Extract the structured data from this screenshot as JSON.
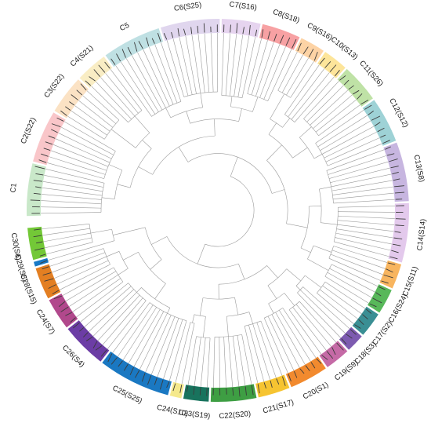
{
  "figure": {
    "type": "circular-phylogenetic-tree",
    "branch_color": "#9a9a9a",
    "background": "#ffffff"
  },
  "clades": [
    {
      "label": "C1",
      "color": "#c9e8c9",
      "leaves": 8
    },
    {
      "label": "C2(S22)",
      "color": "#f9c6c9",
      "leaves": 8
    },
    {
      "label": "C3(S22)",
      "color": "#fbe2c4",
      "leaves": 6
    },
    {
      "label": "C4(S21)",
      "color": "#f9edc4",
      "leaves": 5
    },
    {
      "label": "C5",
      "color": "#bfe0e3",
      "leaves": 9
    },
    {
      "label": "C6(S25)",
      "color": "#e0d6ee",
      "leaves": 9
    },
    {
      "label": "C7(S16)",
      "color": "#e6d4ef",
      "leaves": 6
    },
    {
      "label": "C8(S18)",
      "color": "#f7a1a3",
      "leaves": 6
    },
    {
      "label": "C9(S16)",
      "color": "#fdd3a5",
      "leaves": 4
    },
    {
      "label": "C10(S13)",
      "color": "#fde59a",
      "leaves": 4
    },
    {
      "label": "C11(S26)",
      "color": "#bfe2a6",
      "leaves": 6
    },
    {
      "label": "C12(S12)",
      "color": "#9ed2d6",
      "leaves": 7
    },
    {
      "label": "C13(S8)",
      "color": "#c7b6e0",
      "leaves": 9
    },
    {
      "label": "C14(S14)",
      "color": "#e3c9ec",
      "leaves": 9
    },
    {
      "label": "C15(S11)",
      "color": "#f8b55f",
      "leaves": 4
    },
    {
      "label": "C16(S24)",
      "color": "#58b85a",
      "leaves": 4
    },
    {
      "label": "C17(S2)",
      "color": "#3a8f94",
      "leaves": 4
    },
    {
      "label": "C18(S3)",
      "color": "#7d5bb0",
      "leaves": 3
    },
    {
      "label": "C19(S9)",
      "color": "#c56aa6",
      "leaves": 4
    },
    {
      "label": "C20(S1)",
      "color": "#f28a2e",
      "leaves": 6
    },
    {
      "label": "C21(S17)",
      "color": "#f6c431",
      "leaves": 5
    },
    {
      "label": "C22(S20)",
      "color": "#3e9e43",
      "leaves": 7
    },
    {
      "label": "C23(S19)",
      "color": "#18735d",
      "leaves": 4
    },
    {
      "label": "C24(S10)",
      "color": "#f5e98c",
      "leaves": 2
    },
    {
      "label": "C25(S25)",
      "color": "#1a78c2",
      "leaves": 11
    },
    {
      "label": "C26(S4)",
      "color": "#6c3da5",
      "leaves": 7
    },
    {
      "label": "C24(S7)",
      "color": "#b1488c",
      "leaves": 5
    },
    {
      "label": "C28(S15)",
      "color": "#e37f22",
      "leaves": 5
    },
    {
      "label": "C29(S5)",
      "color": "#1879c6",
      "leaves": 1
    },
    {
      "label": "C30(S6)",
      "color": "#73c837",
      "leaves": 5
    }
  ]
}
